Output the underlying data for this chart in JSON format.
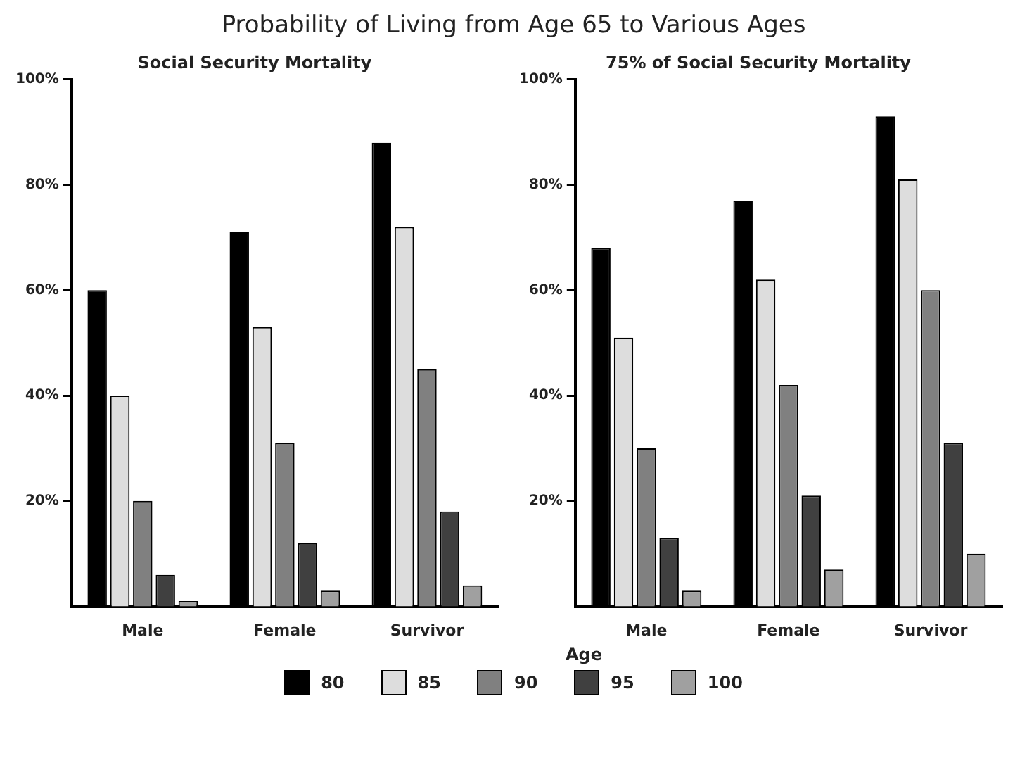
{
  "chart_data": [
    {
      "type": "bar",
      "title": "Probability of Living from Age 65 to Various Ages",
      "subtitle": "Social Security Mortality",
      "categories": [
        "Male",
        "Female",
        "Survivor"
      ],
      "series": [
        {
          "name": "80",
          "color": "#000000",
          "values": [
            60,
            71,
            88
          ]
        },
        {
          "name": "85",
          "color": "#dddddd",
          "values": [
            40,
            53,
            72
          ]
        },
        {
          "name": "90",
          "color": "#808080",
          "values": [
            20,
            31,
            45
          ]
        },
        {
          "name": "95",
          "color": "#404040",
          "values": [
            6,
            12,
            18
          ]
        },
        {
          "name": "100",
          "color": "#a0a0a0",
          "values": [
            1,
            3,
            4
          ]
        }
      ],
      "ylim": [
        0,
        100
      ],
      "yticks": [
        {
          "value": 20,
          "label": "20%"
        },
        {
          "value": 40,
          "label": "40%"
        },
        {
          "value": 60,
          "label": "60%"
        },
        {
          "value": 80,
          "label": "80%"
        },
        {
          "value": 100,
          "label": "100%"
        }
      ],
      "grid": false,
      "legend": "bottom"
    },
    {
      "type": "bar",
      "subtitle": "75% of Social Security Mortality",
      "legend_title": "Age",
      "categories": [
        "Male",
        "Female",
        "Survivor"
      ],
      "series": [
        {
          "name": "80",
          "color": "#000000",
          "values": [
            68,
            77,
            93
          ]
        },
        {
          "name": "85",
          "color": "#dddddd",
          "values": [
            51,
            62,
            81
          ]
        },
        {
          "name": "90",
          "color": "#808080",
          "values": [
            30,
            42,
            60
          ]
        },
        {
          "name": "95",
          "color": "#404040",
          "values": [
            13,
            21,
            31
          ]
        },
        {
          "name": "100",
          "color": "#a0a0a0",
          "values": [
            3,
            7,
            10
          ]
        }
      ],
      "ylim": [
        0,
        100
      ],
      "yticks": [
        {
          "value": 20,
          "label": "20%"
        },
        {
          "value": 40,
          "label": "40%"
        },
        {
          "value": 60,
          "label": "60%"
        },
        {
          "value": 80,
          "label": "80%"
        },
        {
          "value": 100,
          "label": "100%"
        }
      ],
      "grid": false,
      "legend": "bottom"
    }
  ]
}
